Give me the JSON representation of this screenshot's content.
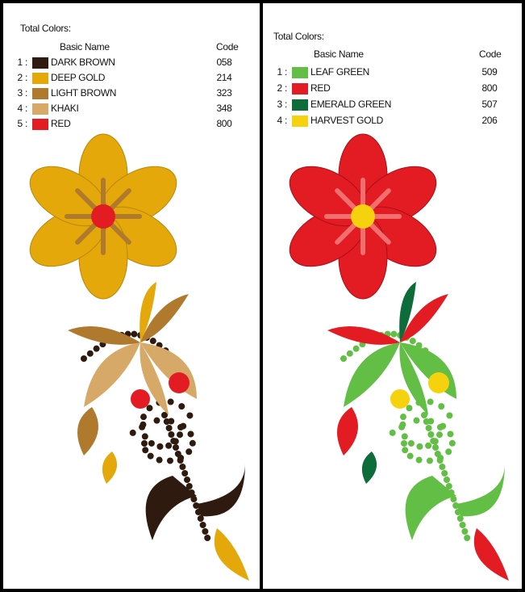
{
  "left": {
    "total_label": "Total Colors:",
    "header_name": "Basic Name",
    "header_code": "Code",
    "colors": [
      {
        "index": "1 :",
        "name": "DARK BROWN",
        "code": "058",
        "hex": "#2E1A0E"
      },
      {
        "index": "2 :",
        "name": "DEEP GOLD",
        "code": "214",
        "hex": "#E5A80A"
      },
      {
        "index": "3 :",
        "name": "LIGHT BROWN",
        "code": "323",
        "hex": "#B07A2E"
      },
      {
        "index": "4 :",
        "name": "KHAKI",
        "code": "348",
        "hex": "#D6A968"
      },
      {
        "index": "5 :",
        "name": "RED",
        "code": "800",
        "hex": "#E31B23"
      }
    ]
  },
  "right": {
    "total_label": "Total Colors:",
    "header_name": "Basic Name",
    "header_code": "Code",
    "colors": [
      {
        "index": "1 :",
        "name": "LEAF GREEN",
        "code": "509",
        "hex": "#62BE45"
      },
      {
        "index": "2 :",
        "name": "RED",
        "code": "800",
        "hex": "#E31B23"
      },
      {
        "index": "3 :",
        "name": "EMERALD GREEN",
        "code": "507",
        "hex": "#0E6B3A"
      },
      {
        "index": "4 :",
        "name": "HARVEST GOLD",
        "code": "206",
        "hex": "#F6D10E"
      }
    ]
  }
}
